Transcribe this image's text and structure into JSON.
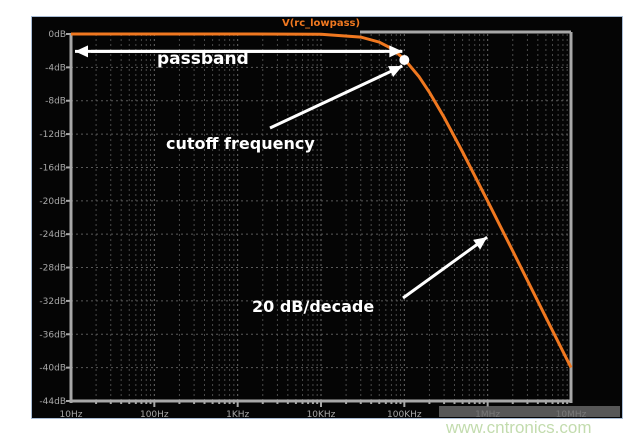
{
  "chart_data": {
    "type": "line",
    "title": "V(rc_lowpass)",
    "xlabel": "",
    "ylabel": "",
    "x_scale": "log",
    "xlim": [
      10,
      10000000
    ],
    "ylim": [
      -44,
      0
    ],
    "grid": true,
    "x_ticks": [
      {
        "v": 10,
        "label": "10Hz"
      },
      {
        "v": 100,
        "label": "100Hz"
      },
      {
        "v": 1000,
        "label": "1KHz"
      },
      {
        "v": 10000,
        "label": "10KHz"
      },
      {
        "v": 100000,
        "label": "100KHz"
      },
      {
        "v": 1000000,
        "label": "1MHz"
      },
      {
        "v": 10000000,
        "label": "10MHz"
      }
    ],
    "y_ticks": [
      {
        "v": 0,
        "label": "0dB"
      },
      {
        "v": -4,
        "label": "-4dB"
      },
      {
        "v": -8,
        "label": "-8dB"
      },
      {
        "v": -12,
        "label": "-12dB"
      },
      {
        "v": -16,
        "label": "-16dB"
      },
      {
        "v": -20,
        "label": "-20dB"
      },
      {
        "v": -24,
        "label": "-24dB"
      },
      {
        "v": -28,
        "label": "-28dB"
      },
      {
        "v": -32,
        "label": "-32dB"
      },
      {
        "v": -36,
        "label": "-36dB"
      },
      {
        "v": -40,
        "label": "-40dB"
      },
      {
        "v": -44,
        "label": "-44dB"
      }
    ],
    "series": [
      {
        "name": "V(rc_lowpass)",
        "color": "#f07820",
        "x": [
          10,
          100,
          1000,
          10000,
          30000,
          50000,
          70000,
          100000,
          150000,
          200000,
          300000,
          500000,
          1000000,
          2000000,
          5000000,
          10000000
        ],
        "y": [
          0,
          0,
          0,
          -0.04,
          -0.37,
          -0.97,
          -1.73,
          -3.01,
          -5.12,
          -6.99,
          -10.0,
          -14.15,
          -20.04,
          -26.03,
          -33.98,
          -40.0
        ]
      }
    ],
    "annotations": [
      {
        "text": "passband",
        "type": "double-arrow",
        "x_from": 10,
        "x_to": 100000,
        "y": -1
      },
      {
        "text": "cutoff frequency",
        "type": "arrow",
        "point": {
          "x": 100000,
          "y": -3
        }
      },
      {
        "text": "20 dB/decade",
        "type": "arrow",
        "point": {
          "x": 1300000,
          "y": -24
        }
      }
    ]
  },
  "watermark": "www.cntronics.com"
}
